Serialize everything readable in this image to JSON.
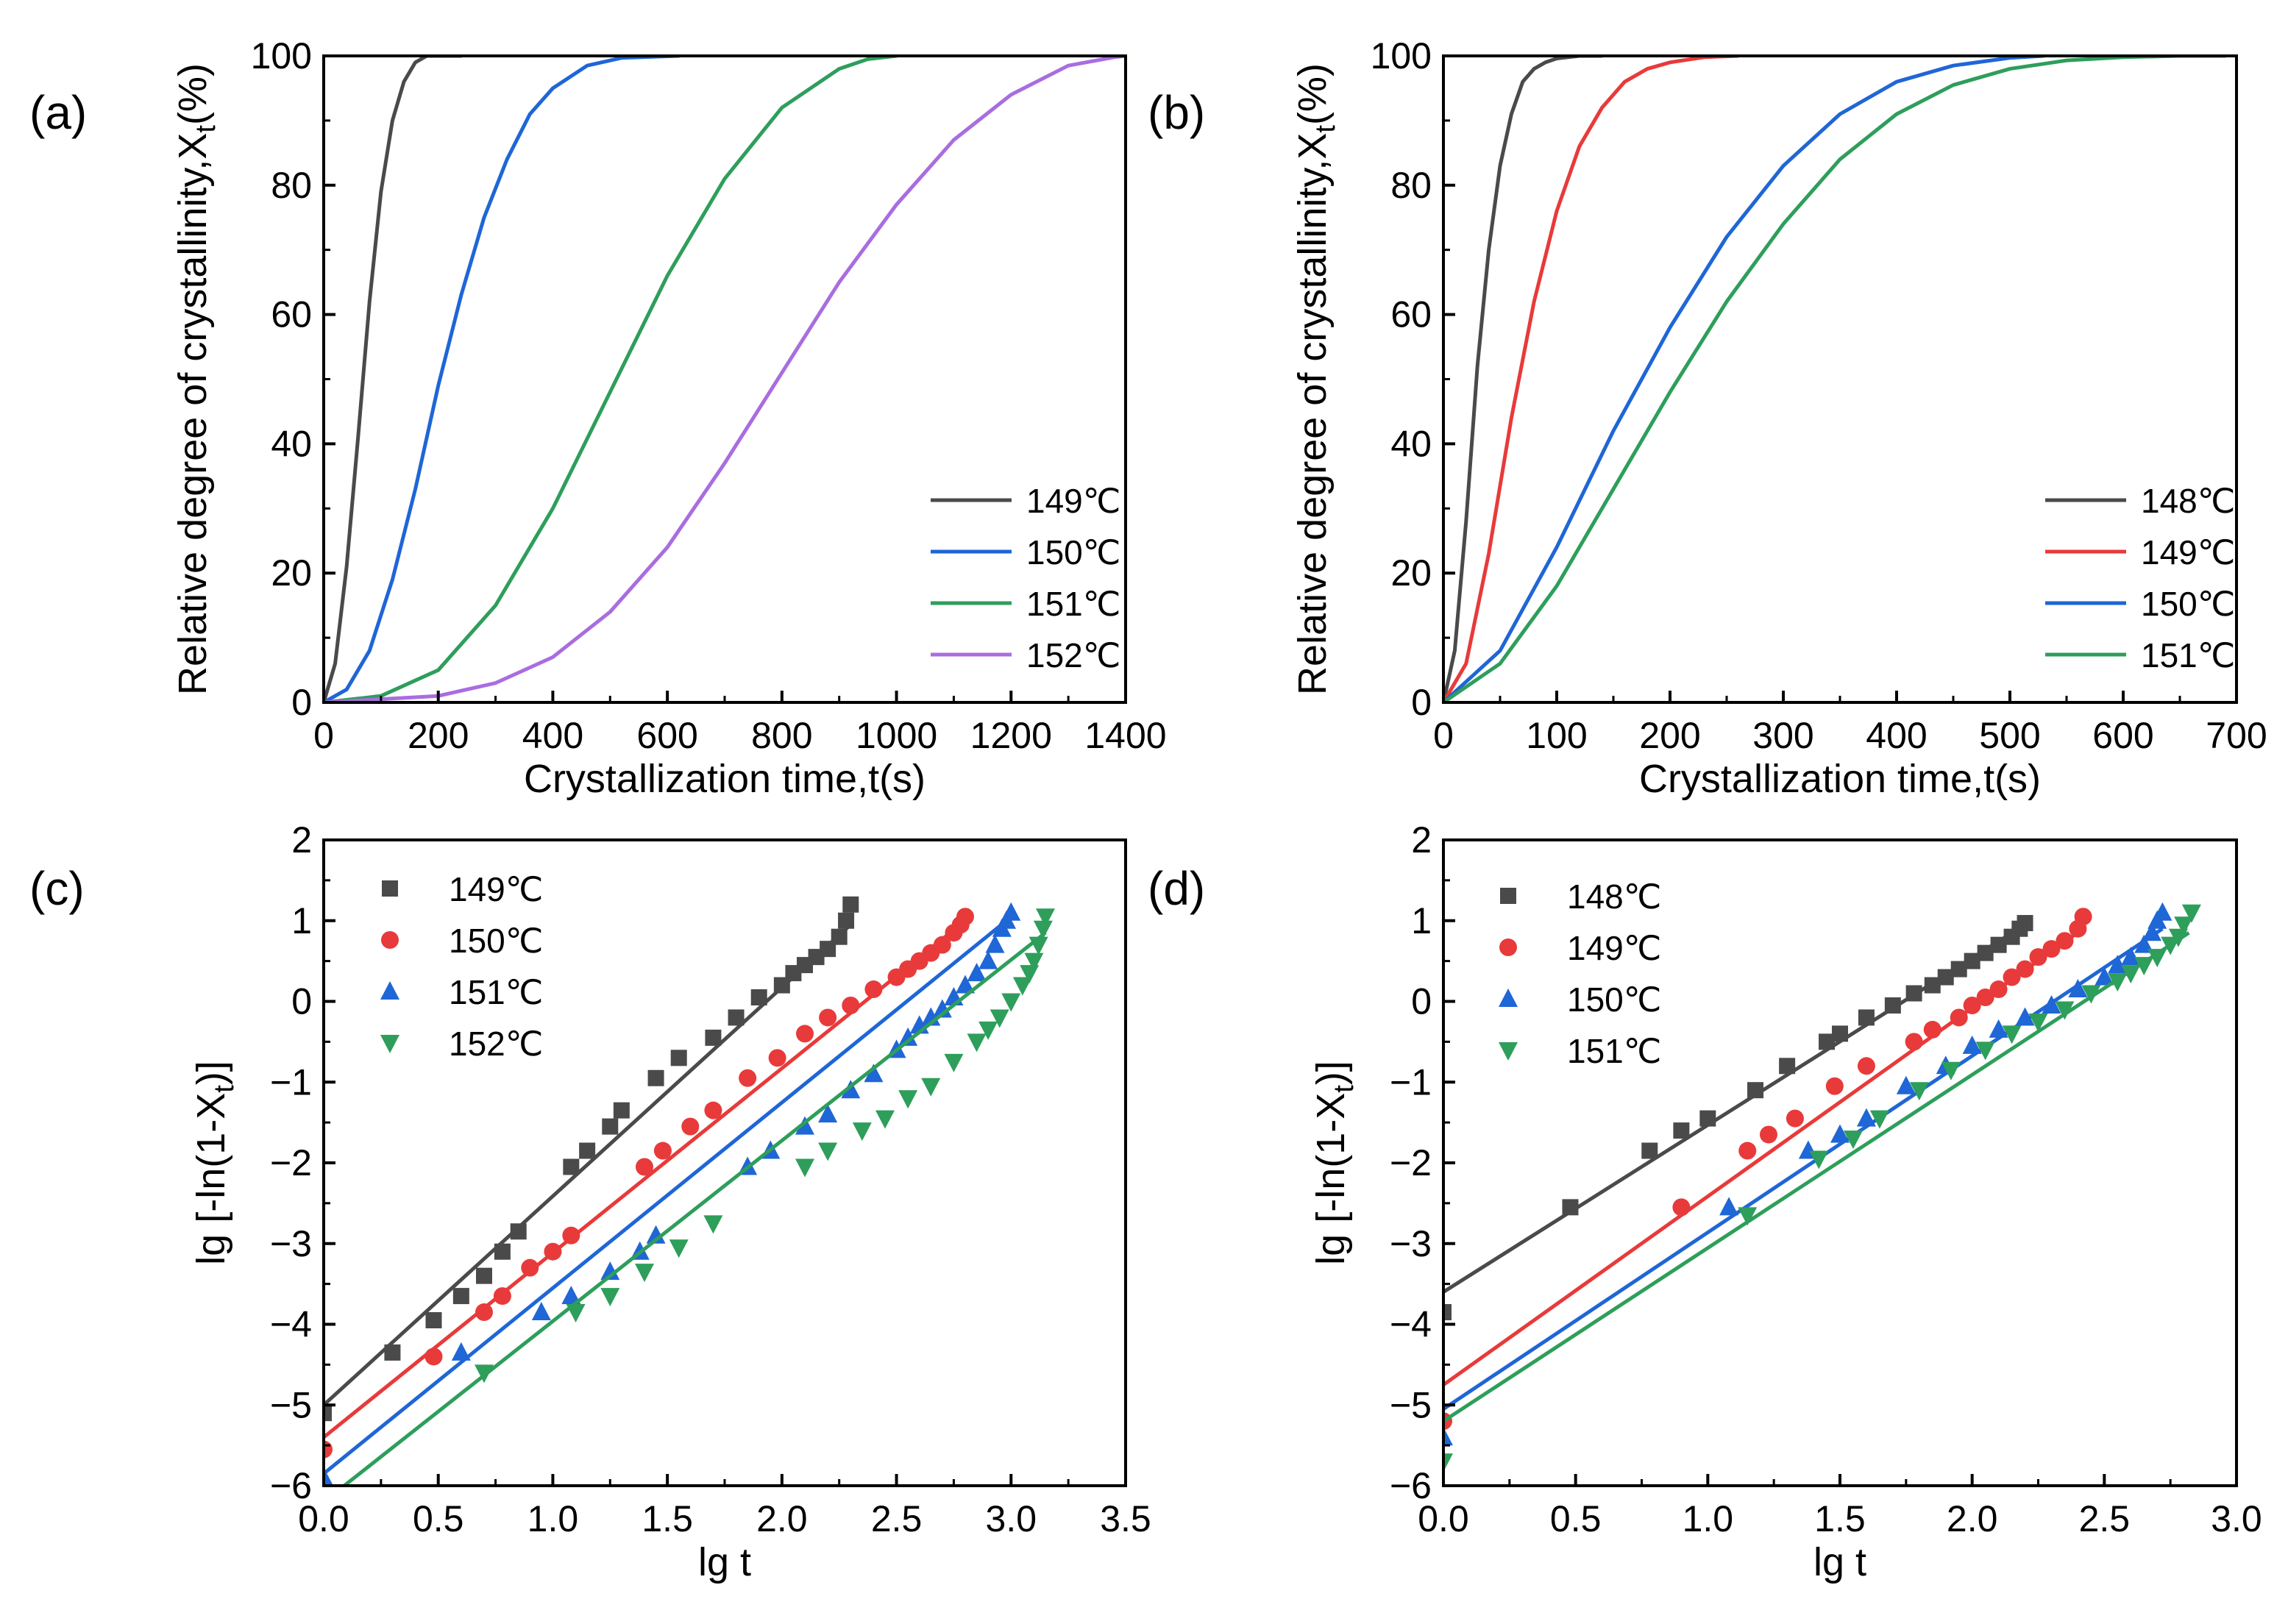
{
  "figure": {
    "description_free": true
  },
  "colors": {
    "c_black": "#4a4a4a",
    "c_blue": "#1f66d6",
    "c_green": "#2e9e5b",
    "c_purple": "#a96de0",
    "c_red": "#e83a3a",
    "c_lgreen": "#3aa562"
  },
  "chart_data": [
    {
      "id": "a",
      "panel_label": "(a)",
      "type": "line",
      "xlabel": "Crystallization time,t(s)",
      "ylabel_main": "Relative degree of crystallinity,X",
      "ylabel_sub": "t",
      "ylabel_tail": "(%)",
      "xlim": [
        0,
        1400
      ],
      "ylim": [
        0,
        100
      ],
      "xticks": [
        0,
        200,
        400,
        600,
        800,
        1000,
        1200,
        1400
      ],
      "yticks": [
        0,
        20,
        40,
        60,
        80,
        100
      ],
      "grid": false,
      "legend_position": "bottom-right",
      "series": [
        {
          "name": "149℃",
          "color": "#4a4a4a",
          "x": [
            0,
            20,
            40,
            60,
            80,
            100,
            120,
            140,
            160,
            180,
            200,
            240
          ],
          "y": [
            0,
            6,
            21,
            41,
            62,
            79,
            90,
            96,
            99,
            100,
            100,
            100
          ]
        },
        {
          "name": "150℃",
          "color": "#1f66d6",
          "x": [
            0,
            40,
            80,
            120,
            160,
            200,
            240,
            280,
            320,
            360,
            400,
            460,
            520,
            620
          ],
          "y": [
            0,
            2,
            8,
            19,
            33,
            49,
            63,
            75,
            84,
            91,
            95,
            98.5,
            99.7,
            100
          ]
        },
        {
          "name": "151℃",
          "color": "#2e9e5b",
          "x": [
            0,
            100,
            200,
            300,
            400,
            500,
            600,
            700,
            800,
            900,
            950,
            1000
          ],
          "y": [
            0,
            1,
            5,
            15,
            30,
            48,
            66,
            81,
            92,
            98,
            99.5,
            100
          ]
        },
        {
          "name": "152℃",
          "color": "#a96de0",
          "x": [
            0,
            200,
            300,
            400,
            500,
            600,
            700,
            800,
            900,
            1000,
            1100,
            1200,
            1300,
            1380,
            1400
          ],
          "y": [
            0,
            1,
            3,
            7,
            14,
            24,
            37,
            51,
            65,
            77,
            87,
            94,
            98.5,
            99.8,
            100
          ]
        }
      ]
    },
    {
      "id": "b",
      "panel_label": "(b)",
      "type": "line",
      "xlabel": "Crystallization time,t(s)",
      "ylabel_main": "Relative degree of crystallinity,X",
      "ylabel_sub": "t",
      "ylabel_tail": "(%)",
      "xlim": [
        0,
        700
      ],
      "ylim": [
        0,
        100
      ],
      "xticks": [
        0,
        100,
        200,
        300,
        400,
        500,
        600,
        700
      ],
      "yticks": [
        0,
        20,
        40,
        60,
        80,
        100
      ],
      "grid": false,
      "legend_position": "bottom-right",
      "series": [
        {
          "name": "148℃",
          "color": "#4a4a4a",
          "x": [
            0,
            10,
            20,
            30,
            40,
            50,
            60,
            70,
            80,
            90,
            100,
            120,
            140
          ],
          "y": [
            0,
            8,
            28,
            52,
            70,
            83,
            91,
            96,
            98,
            99,
            99.6,
            100,
            100
          ]
        },
        {
          "name": "149℃",
          "color": "#e83a3a",
          "x": [
            0,
            20,
            40,
            60,
            80,
            100,
            120,
            140,
            160,
            180,
            200,
            230,
            260
          ],
          "y": [
            0,
            6,
            23,
            44,
            62,
            76,
            86,
            92,
            96,
            98,
            99,
            99.8,
            100
          ]
        },
        {
          "name": "150℃",
          "color": "#1f66d6",
          "x": [
            0,
            50,
            100,
            150,
            200,
            250,
            300,
            350,
            400,
            450,
            500,
            530
          ],
          "y": [
            0,
            8,
            24,
            42,
            58,
            72,
            83,
            91,
            96,
            98.5,
            99.7,
            100
          ]
        },
        {
          "name": "151℃",
          "color": "#2e9e5b",
          "x": [
            0,
            50,
            100,
            150,
            200,
            250,
            300,
            350,
            400,
            450,
            500,
            550,
            600,
            650,
            690
          ],
          "y": [
            0,
            6,
            18,
            33,
            48,
            62,
            74,
            84,
            91,
            95.5,
            98,
            99.3,
            99.8,
            100,
            100
          ]
        }
      ]
    },
    {
      "id": "c",
      "panel_label": "(c)",
      "type": "scatter",
      "xlabel": "lg t",
      "ylabel_main": "lg [-ln(1-X",
      "ylabel_sub": "t",
      "ylabel_tail": ")]",
      "xlim": [
        0,
        3.5
      ],
      "ylim": [
        -6,
        2
      ],
      "xticks": [
        0,
        0.5,
        1.0,
        1.5,
        2.0,
        2.5,
        3.0,
        3.5
      ],
      "xtick_labels": [
        "0.0",
        "0.5",
        "1.0",
        "1.5",
        "2.0",
        "2.5",
        "3.0",
        "3.5"
      ],
      "yticks": [
        -6,
        -5,
        -4,
        -3,
        -2,
        -1,
        0,
        1,
        2
      ],
      "ytick_labels": [
        "−6",
        "−5",
        "−4",
        "−3",
        "−2",
        "−1",
        "0",
        "1",
        "2"
      ],
      "grid": false,
      "legend_position": "top-left",
      "series": [
        {
          "name": "149℃",
          "color": "#4a4a4a",
          "marker": "square",
          "fit": [
            [
              0,
              -5.0
            ],
            [
              2.3,
              0.95
            ]
          ],
          "x": [
            0,
            0.3,
            0.48,
            0.6,
            0.7,
            0.78,
            0.85,
            1.08,
            1.15,
            1.25,
            1.3,
            1.45,
            1.55,
            1.7,
            1.8,
            1.9,
            2.0,
            2.05,
            2.1,
            2.15,
            2.2,
            2.25,
            2.28,
            2.3
          ],
          "y": [
            -5.1,
            -4.35,
            -3.95,
            -3.65,
            -3.4,
            -3.1,
            -2.85,
            -2.05,
            -1.85,
            -1.55,
            -1.35,
            -0.95,
            -0.7,
            -0.45,
            -0.2,
            0.05,
            0.2,
            0.35,
            0.45,
            0.55,
            0.65,
            0.8,
            1.0,
            1.2
          ]
        },
        {
          "name": "150℃",
          "color": "#e83a3a",
          "marker": "circle",
          "fit": [
            [
              0,
              -5.4
            ],
            [
              2.8,
              1.0
            ]
          ],
          "x": [
            0,
            0.48,
            0.7,
            0.78,
            0.9,
            1.0,
            1.08,
            1.4,
            1.48,
            1.6,
            1.7,
            1.85,
            1.98,
            2.1,
            2.2,
            2.3,
            2.4,
            2.5,
            2.55,
            2.6,
            2.65,
            2.7,
            2.75,
            2.78,
            2.8
          ],
          "y": [
            -5.55,
            -4.4,
            -3.85,
            -3.65,
            -3.3,
            -3.1,
            -2.9,
            -2.05,
            -1.85,
            -1.55,
            -1.35,
            -0.95,
            -0.7,
            -0.4,
            -0.2,
            -0.05,
            0.15,
            0.3,
            0.4,
            0.5,
            0.6,
            0.7,
            0.85,
            0.95,
            1.05
          ]
        },
        {
          "name": "151℃",
          "color": "#1f66d6",
          "marker": "triangle-up",
          "fit": [
            [
              0,
              -5.85
            ],
            [
              2.98,
              1.0
            ]
          ],
          "x": [
            0,
            0.6,
            0.95,
            1.08,
            1.25,
            1.38,
            1.45,
            1.85,
            1.95,
            2.1,
            2.2,
            2.3,
            2.4,
            2.5,
            2.55,
            2.6,
            2.65,
            2.7,
            2.75,
            2.8,
            2.85,
            2.9,
            2.93,
            2.96,
            2.98,
            3.0
          ],
          "y": [
            -5.9,
            -4.35,
            -3.85,
            -3.65,
            -3.35,
            -3.1,
            -2.9,
            -2.05,
            -1.85,
            -1.55,
            -1.4,
            -1.1,
            -0.9,
            -0.6,
            -0.45,
            -0.3,
            -0.2,
            -0.1,
            0.05,
            0.2,
            0.35,
            0.5,
            0.7,
            0.9,
            1.0,
            1.1
          ]
        },
        {
          "name": "152℃",
          "color": "#2e9e5b",
          "marker": "triangle-down",
          "fit": [
            [
              0,
              -6.2
            ],
            [
              3.15,
              0.85
            ]
          ],
          "x": [
            0.7,
            1.1,
            1.25,
            1.4,
            1.55,
            1.7,
            2.1,
            2.2,
            2.35,
            2.45,
            2.55,
            2.65,
            2.75,
            2.85,
            2.9,
            2.95,
            3.0,
            3.05,
            3.08,
            3.1,
            3.12,
            3.14,
            3.15
          ],
          "y": [
            -4.6,
            -3.85,
            -3.65,
            -3.35,
            -3.05,
            -2.75,
            -2.05,
            -1.85,
            -1.6,
            -1.45,
            -1.2,
            -1.05,
            -0.75,
            -0.5,
            -0.35,
            -0.2,
            0.0,
            0.2,
            0.35,
            0.5,
            0.7,
            0.9,
            1.05
          ]
        }
      ]
    },
    {
      "id": "d",
      "panel_label": "(d)",
      "type": "scatter",
      "xlabel": "lg t",
      "ylabel_main": "lg [-ln(1-X",
      "ylabel_sub": "t",
      "ylabel_tail": ")]",
      "xlim": [
        0,
        3.0
      ],
      "ylim": [
        -6,
        2
      ],
      "xticks": [
        0,
        0.5,
        1.0,
        1.5,
        2.0,
        2.5,
        3.0
      ],
      "xtick_labels": [
        "0.0",
        "0.5",
        "1.0",
        "1.5",
        "2.0",
        "2.5",
        "3.0"
      ],
      "yticks": [
        -6,
        -5,
        -4,
        -3,
        -2,
        -1,
        0,
        1,
        2
      ],
      "ytick_labels": [
        "−6",
        "−5",
        "−4",
        "−3",
        "−2",
        "−1",
        "0",
        "1",
        "2"
      ],
      "grid": false,
      "legend_position": "top-left",
      "series": [
        {
          "name": "148℃",
          "color": "#4a4a4a",
          "marker": "square",
          "fit": [
            [
              0,
              -3.6
            ],
            [
              2.2,
              0.95
            ]
          ],
          "x": [
            0,
            0.48,
            0.78,
            0.9,
            1.0,
            1.18,
            1.3,
            1.45,
            1.5,
            1.6,
            1.7,
            1.78,
            1.85,
            1.9,
            1.95,
            2.0,
            2.05,
            2.1,
            2.15,
            2.18,
            2.2
          ],
          "y": [
            -3.85,
            -2.55,
            -1.85,
            -1.6,
            -1.45,
            -1.1,
            -0.8,
            -0.5,
            -0.4,
            -0.2,
            -0.05,
            0.1,
            0.2,
            0.3,
            0.4,
            0.5,
            0.6,
            0.7,
            0.8,
            0.9,
            0.97
          ]
        },
        {
          "name": "149℃",
          "color": "#e83a3a",
          "marker": "circle",
          "fit": [
            [
              0,
              -4.75
            ],
            [
              2.42,
              0.9
            ]
          ],
          "x": [
            0,
            0.9,
            1.15,
            1.23,
            1.33,
            1.48,
            1.6,
            1.78,
            1.85,
            1.95,
            2.0,
            2.05,
            2.1,
            2.15,
            2.2,
            2.25,
            2.3,
            2.35,
            2.4,
            2.42
          ],
          "y": [
            -5.2,
            -2.55,
            -1.85,
            -1.65,
            -1.45,
            -1.05,
            -0.8,
            -0.5,
            -0.35,
            -0.2,
            -0.05,
            0.05,
            0.15,
            0.3,
            0.4,
            0.55,
            0.65,
            0.75,
            0.9,
            1.05
          ]
        },
        {
          "name": "150℃",
          "color": "#1f66d6",
          "marker": "triangle-up",
          "fit": [
            [
              0,
              -5.05
            ],
            [
              2.72,
              0.9
            ]
          ],
          "x": [
            0,
            1.08,
            1.38,
            1.5,
            1.6,
            1.75,
            1.9,
            2.0,
            2.1,
            2.2,
            2.3,
            2.4,
            2.5,
            2.55,
            2.6,
            2.65,
            2.68,
            2.7,
            2.72
          ],
          "y": [
            -5.4,
            -2.55,
            -1.85,
            -1.65,
            -1.45,
            -1.05,
            -0.8,
            -0.55,
            -0.35,
            -0.2,
            -0.05,
            0.15,
            0.3,
            0.45,
            0.55,
            0.7,
            0.85,
            1.0,
            1.1
          ]
        },
        {
          "name": "151℃",
          "color": "#2e9e5b",
          "marker": "triangle-down",
          "fit": [
            [
              0,
              -5.2
            ],
            [
              2.82,
              0.85
            ]
          ],
          "x": [
            0,
            1.15,
            1.42,
            1.55,
            1.65,
            1.8,
            1.92,
            2.05,
            2.15,
            2.25,
            2.35,
            2.45,
            2.55,
            2.6,
            2.65,
            2.7,
            2.75,
            2.78,
            2.8,
            2.83
          ],
          "y": [
            -5.7,
            -2.65,
            -1.95,
            -1.7,
            -1.45,
            -1.1,
            -0.85,
            -0.6,
            -0.4,
            -0.25,
            -0.1,
            0.1,
            0.25,
            0.35,
            0.45,
            0.55,
            0.7,
            0.8,
            0.95,
            1.1
          ]
        }
      ]
    }
  ]
}
